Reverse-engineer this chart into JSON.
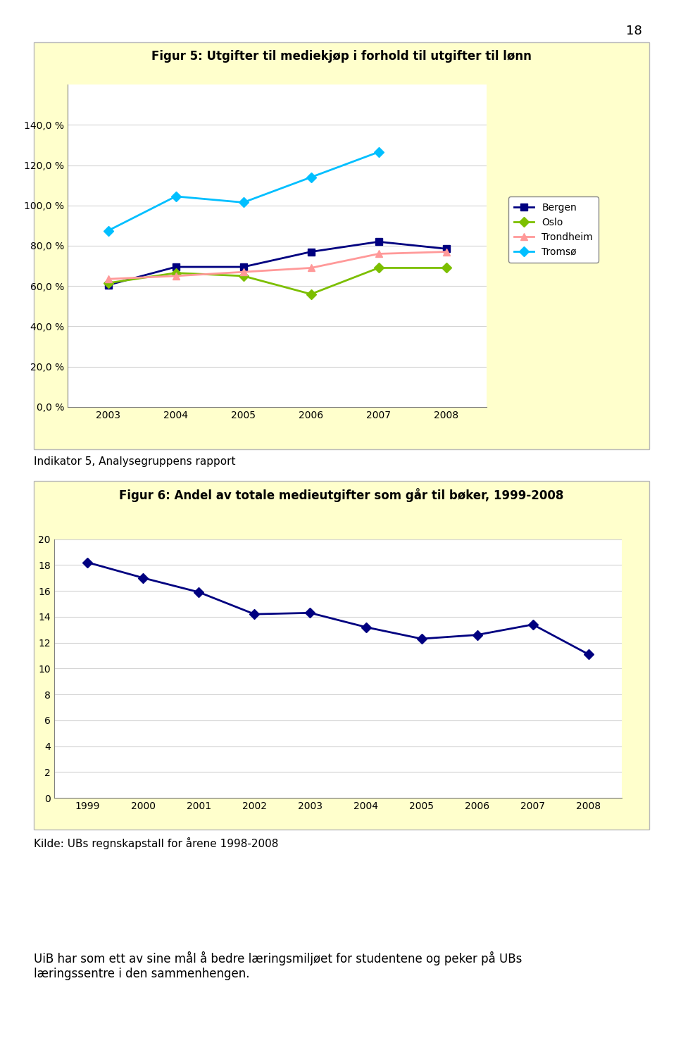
{
  "page_number": "18",
  "fig1": {
    "title": "Figur 5: Utgifter til mediekjøp i forhold til utgifter til lønn",
    "bg_color": "#FFFFCC",
    "plot_bg_color": "#FFFFFF",
    "years": [
      2003,
      2004,
      2005,
      2006,
      2007,
      2008
    ],
    "series": {
      "Bergen": {
        "values": [
          60.5,
          69.5,
          69.5,
          77.0,
          82.0,
          78.5
        ],
        "color": "#000080",
        "marker": "s",
        "linewidth": 2
      },
      "Oslo": {
        "values": [
          61.5,
          66.5,
          65.0,
          56.0,
          69.0,
          69.0
        ],
        "color": "#7CBF00",
        "marker": "D",
        "linewidth": 2
      },
      "Trondheim": {
        "values": [
          63.5,
          65.0,
          67.0,
          69.0,
          76.0,
          77.0
        ],
        "color": "#FF9999",
        "marker": "^",
        "linewidth": 2
      },
      "Tromsø": {
        "values": [
          87.5,
          104.5,
          101.5,
          114.0,
          126.5,
          null
        ],
        "color": "#00BFFF",
        "marker": "D",
        "linewidth": 2
      }
    },
    "ylim": [
      0,
      160
    ],
    "yticks": [
      0,
      20,
      40,
      60,
      80,
      100,
      120,
      140
    ],
    "ytick_labels": [
      "0,0 %",
      "20,0 %",
      "40,0 %",
      "60,0 %",
      "80,0 %",
      "100,0 %",
      "120,0 %",
      "140,0 %"
    ]
  },
  "caption1": "Indikator 5, Analysegruppens rapport",
  "fig2": {
    "title": "Figur 6: Andel av totale medieutgifter som går til bøker, 1999-2008",
    "bg_color": "#FFFFCC",
    "plot_bg_color": "#FFFFFF",
    "years": [
      1999,
      2000,
      2001,
      2002,
      2003,
      2004,
      2005,
      2006,
      2007,
      2008
    ],
    "values": [
      18.2,
      17.0,
      15.9,
      14.2,
      14.3,
      13.2,
      12.3,
      12.6,
      13.4,
      11.1
    ],
    "color": "#000080",
    "marker": "D",
    "linewidth": 2,
    "ylim": [
      0,
      20
    ],
    "yticks": [
      0,
      2,
      4,
      6,
      8,
      10,
      12,
      14,
      16,
      18,
      20
    ]
  },
  "caption2": "Kilde: UBs regnskapstall for årene 1998-2008",
  "caption3": "UiB har som ett av sine mål å bedre læringsmiljøet for studentene og peker på UBs\nlæringssentre i den sammenhengen.",
  "page_bg": "#FFFFFF",
  "title_fontsize": 12,
  "axis_fontsize": 10,
  "caption_fontsize": 11
}
